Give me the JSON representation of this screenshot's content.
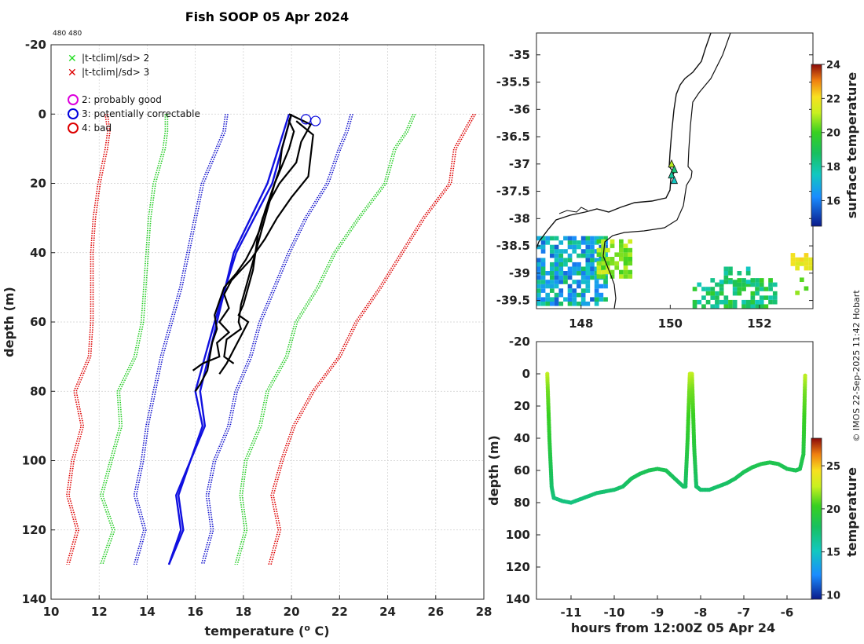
{
  "title": "Fish SOOP 05 Apr 2024",
  "corner_note": "480 480",
  "credit": "© IMOS 22-Sep-2025 11:42 Hobart",
  "legend": {
    "flags": [
      {
        "label": "|t-tclim|/sd> 2",
        "color": "#22dd22"
      },
      {
        "label": "|t-tclim|/sd> 3",
        "color": "#dd0000"
      }
    ],
    "qc": [
      {
        "label": "2: probably good",
        "color": "#dd00dd"
      },
      {
        "label": "3: potentially correctable",
        "color": "#0000dd"
      },
      {
        "label": "4: bad",
        "color": "#dd0000"
      }
    ]
  },
  "chart_data": [
    {
      "type": "line",
      "name": "profile",
      "xlabel": "temperature (o C)",
      "ylabel": "depth (m)",
      "xlim": [
        10,
        28
      ],
      "ylim": [
        -20,
        140
      ],
      "xticks": [
        10,
        12,
        14,
        16,
        18,
        20,
        22,
        24,
        26,
        28
      ],
      "yticks": [
        -20,
        0,
        20,
        40,
        60,
        80,
        100,
        120,
        140
      ],
      "depths": [
        0,
        5,
        10,
        20,
        30,
        40,
        50,
        60,
        70,
        80,
        90,
        100,
        110,
        120,
        130
      ],
      "climatology": [
        {
          "name": "-3sd",
          "color": "#dd0000",
          "temps": [
            12.3,
            12.4,
            12.3,
            12.0,
            11.8,
            11.7,
            11.7,
            11.7,
            11.6,
            11.0,
            11.3,
            10.9,
            10.7,
            11.1,
            10.7
          ]
        },
        {
          "name": "-2sd",
          "color": "#22cc22",
          "temps": [
            14.8,
            14.8,
            14.7,
            14.3,
            14.1,
            14.0,
            13.9,
            13.8,
            13.5,
            12.8,
            12.9,
            12.5,
            12.1,
            12.6,
            12.1
          ]
        },
        {
          "name": "-1sd",
          "color": "#1111cc",
          "temps": [
            17.3,
            17.2,
            16.9,
            16.3,
            16.0,
            15.7,
            15.4,
            15.0,
            14.6,
            14.3,
            14.0,
            13.8,
            13.5,
            13.9,
            13.5
          ]
        },
        {
          "name": "+1sd",
          "color": "#1111cc",
          "temps": [
            22.5,
            22.3,
            22.0,
            21.5,
            20.6,
            19.9,
            19.3,
            18.7,
            18.3,
            17.7,
            17.4,
            16.8,
            16.5,
            16.7,
            16.3
          ]
        },
        {
          "name": "+2sd",
          "color": "#22cc22",
          "temps": [
            25.1,
            24.8,
            24.3,
            23.9,
            22.8,
            21.8,
            21.1,
            20.2,
            19.8,
            19.0,
            18.7,
            18.1,
            17.9,
            18.1,
            17.7
          ]
        },
        {
          "name": "+3sd",
          "color": "#dd0000",
          "temps": [
            27.6,
            27.2,
            26.8,
            26.6,
            25.5,
            24.6,
            23.7,
            22.7,
            22.0,
            20.9,
            20.1,
            19.6,
            19.2,
            19.5,
            19.1
          ]
        }
      ],
      "black_profiles": [
        {
          "depths": [
            0,
            2,
            5,
            10,
            15,
            20,
            25,
            30,
            35,
            40,
            45,
            50,
            55,
            60,
            62,
            65,
            70,
            72
          ],
          "temps": [
            20.0,
            19.9,
            20.1,
            19.9,
            19.6,
            19.3,
            19.1,
            18.9,
            18.7,
            18.5,
            18.3,
            18.1,
            17.9,
            17.8,
            17.9,
            17.3,
            17.2,
            17.6
          ]
        },
        {
          "depths": [
            0,
            3,
            8,
            14,
            20,
            25,
            30,
            35,
            40,
            45,
            50,
            55,
            58,
            60,
            64,
            68,
            72,
            75
          ],
          "temps": [
            19.9,
            20.8,
            20.4,
            20.2,
            19.5,
            19.1,
            18.8,
            18.6,
            18.5,
            18.4,
            18.2,
            18.0,
            17.8,
            18.2,
            17.9,
            17.6,
            17.3,
            17.0
          ]
        },
        {
          "depths": [
            2,
            6,
            12,
            18,
            24,
            30,
            36,
            42,
            48,
            52,
            56,
            60,
            63,
            66,
            70,
            72,
            74
          ],
          "temps": [
            20.2,
            20.9,
            20.8,
            20.7,
            20.0,
            19.4,
            18.9,
            18.3,
            17.5,
            17.2,
            17.4,
            17.0,
            17.4,
            16.9,
            17.0,
            16.3,
            15.9
          ]
        },
        {
          "depths": [
            0,
            5,
            10,
            16,
            22,
            28,
            33,
            38,
            42,
            46,
            50,
            54,
            58,
            62,
            66,
            70,
            74,
            78,
            80
          ],
          "temps": [
            20.0,
            19.8,
            19.6,
            19.5,
            19.2,
            18.9,
            18.7,
            18.4,
            18.1,
            17.7,
            17.2,
            17.0,
            16.8,
            16.9,
            16.7,
            16.6,
            16.5,
            16.2,
            16.0
          ]
        }
      ],
      "blue_profiles": [
        {
          "depths": [
            0,
            20,
            40,
            60,
            80,
            90,
            100,
            110,
            120,
            130
          ],
          "temps": [
            20.0,
            19.2,
            17.7,
            16.8,
            16.0,
            16.3,
            15.8,
            15.3,
            15.5,
            14.9
          ]
        },
        {
          "depths": [
            0,
            20,
            40,
            60,
            80,
            90,
            100,
            110,
            120,
            130
          ],
          "temps": [
            19.9,
            19.0,
            17.6,
            16.9,
            16.2,
            16.4,
            15.8,
            15.2,
            15.4,
            14.9
          ]
        }
      ],
      "qc_markers": [
        {
          "temp": 20.6,
          "depth": 1.5,
          "flag": 3
        },
        {
          "temp": 21.0,
          "depth": 2.0,
          "flag": 3
        }
      ]
    },
    {
      "type": "scatter",
      "name": "map",
      "xlim": [
        147,
        153.2
      ],
      "ylim": [
        -39.65,
        -34.6
      ],
      "xticks": [
        148,
        150,
        152
      ],
      "yticks": [
        -35,
        -35.5,
        -36,
        -36.5,
        -37,
        -37.5,
        -38,
        -38.5,
        -39,
        -39.5
      ],
      "colorbar": {
        "label": "surface temperature",
        "range": [
          14.5,
          24
        ],
        "ticks": [
          16,
          18,
          20,
          22,
          24
        ]
      },
      "track_lon": 150.05,
      "track_lat": [
        -37.0,
        -37.1,
        -37.2,
        -37.3
      ],
      "track_sst": [
        21.0,
        18.5,
        18.0,
        17.5
      ]
    },
    {
      "type": "scatter",
      "name": "timeseries",
      "xlabel": "hours from 12:00Z 05 Apr 24",
      "ylabel": "depth (m)",
      "xlim": [
        -11.8,
        -5.4
      ],
      "ylim": [
        -20,
        140
      ],
      "xticks": [
        -11,
        -10,
        -9,
        -8,
        -7,
        -6
      ],
      "yticks": [
        -20,
        0,
        20,
        40,
        60,
        80,
        100,
        120,
        140
      ],
      "colorbar": {
        "label": "temperature",
        "range": [
          9.5,
          28.2
        ],
        "ticks": [
          10,
          15,
          20,
          25
        ]
      },
      "hours": [
        -11.55,
        -11.5,
        -11.45,
        -11.4,
        -11.2,
        -11.0,
        -10.8,
        -10.6,
        -10.4,
        -10.2,
        -10.0,
        -9.8,
        -9.6,
        -9.4,
        -9.2,
        -9.0,
        -8.8,
        -8.6,
        -8.4,
        -8.35,
        -8.3,
        -8.25,
        -8.2,
        -8.15,
        -8.1,
        -8.0,
        -7.8,
        -7.6,
        -7.4,
        -7.2,
        -7.0,
        -6.8,
        -6.6,
        -6.4,
        -6.2,
        -6.0,
        -5.8,
        -5.7,
        -5.62,
        -5.58
      ],
      "depths": [
        0,
        40,
        70,
        77,
        79,
        80,
        78,
        76,
        74,
        73,
        72,
        70,
        65,
        62,
        60,
        59,
        60,
        65,
        70,
        70,
        40,
        0,
        0,
        45,
        70,
        72,
        72,
        70,
        68,
        65,
        61,
        58,
        56,
        55,
        56,
        59,
        60,
        59,
        50,
        0
      ]
    }
  ]
}
